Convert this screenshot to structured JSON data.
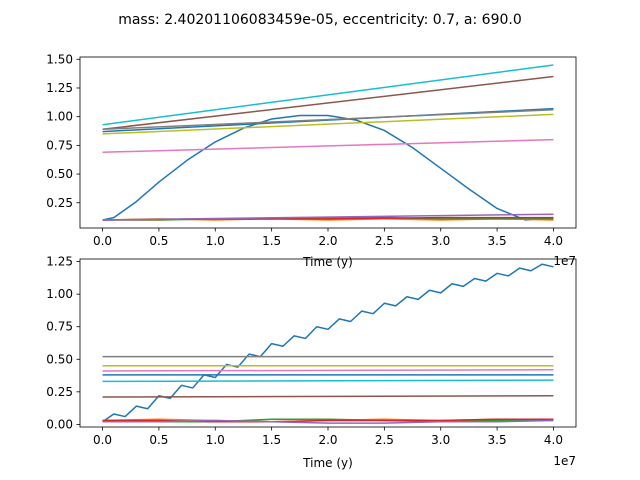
{
  "figure": {
    "suptitle": "mass: 2.40201106083459e-05, eccentricity: 0.7, a: 690.0"
  },
  "chart_data": [
    {
      "type": "line",
      "title": "",
      "xlabel": "Time (y)",
      "ylabel": "",
      "x_offset_label": "1e7",
      "xlim": [
        -0.2,
        4.2
      ],
      "ylim": [
        0.03,
        1.52
      ],
      "x_ticks": [
        0.0,
        0.5,
        1.0,
        1.5,
        2.0,
        2.5,
        3.0,
        3.5,
        4.0
      ],
      "x_tick_labels": [
        "0.0",
        "0.5",
        "1.0",
        "1.5",
        "2.0",
        "2.5",
        "3.0",
        "3.5",
        "4.0"
      ],
      "y_ticks": [
        0.25,
        0.5,
        0.75,
        1.0,
        1.25,
        1.5
      ],
      "y_tick_labels": [
        "0.25",
        "0.50",
        "0.75",
        "1.00",
        "1.25",
        "1.50"
      ],
      "series": [
        {
          "color": "#1f77b4",
          "x": [
            0.0,
            0.1,
            0.3,
            0.5,
            0.75,
            1.0,
            1.25,
            1.5,
            1.75,
            2.0,
            2.25,
            2.5,
            2.75,
            3.0,
            3.25,
            3.5,
            3.75,
            4.0
          ],
          "y": [
            0.1,
            0.12,
            0.26,
            0.43,
            0.62,
            0.78,
            0.9,
            0.98,
            1.01,
            1.01,
            0.97,
            0.88,
            0.73,
            0.55,
            0.37,
            0.2,
            0.1,
            0.12
          ]
        },
        {
          "color": "#1f77b4",
          "x": [
            0.0,
            4.0
          ],
          "y": [
            0.87,
            1.07
          ]
        },
        {
          "color": "#ff7f0e",
          "x": [
            0.0,
            0.5,
            1.0,
            1.5,
            2.0,
            2.5,
            3.0,
            3.5,
            4.0
          ],
          "y": [
            0.1,
            0.11,
            0.1,
            0.11,
            0.1,
            0.11,
            0.1,
            0.11,
            0.1
          ]
        },
        {
          "color": "#2ca02c",
          "x": [
            0.0,
            0.5,
            1.0,
            1.5,
            2.0,
            2.5,
            3.0,
            3.5,
            4.0
          ],
          "y": [
            0.1,
            0.1,
            0.11,
            0.11,
            0.12,
            0.12,
            0.11,
            0.11,
            0.11
          ]
        },
        {
          "color": "#d62728",
          "x": [
            0.0,
            1.0,
            2.0,
            3.0,
            4.0
          ],
          "y": [
            0.1,
            0.11,
            0.11,
            0.12,
            0.12
          ]
        },
        {
          "color": "#9467bd",
          "x": [
            0.0,
            4.0
          ],
          "y": [
            0.1,
            0.15
          ]
        },
        {
          "color": "#8c564b",
          "x": [
            0.0,
            4.0
          ],
          "y": [
            0.89,
            1.35
          ]
        },
        {
          "color": "#e377c2",
          "x": [
            0.0,
            4.0
          ],
          "y": [
            0.69,
            0.8
          ]
        },
        {
          "color": "#7f7f7f",
          "x": [
            0.0,
            4.0
          ],
          "y": [
            0.89,
            1.06
          ]
        },
        {
          "color": "#bcbd22",
          "x": [
            0.0,
            4.0
          ],
          "y": [
            0.85,
            1.02
          ]
        },
        {
          "color": "#17becf",
          "x": [
            0.0,
            4.0
          ],
          "y": [
            0.93,
            1.45
          ]
        }
      ]
    },
    {
      "type": "line",
      "title": "",
      "xlabel": "Time (y)",
      "ylabel": "",
      "x_offset_label": "1e7",
      "xlim": [
        -0.2,
        4.2
      ],
      "ylim": [
        -0.02,
        1.27
      ],
      "x_ticks": [
        0.0,
        0.5,
        1.0,
        1.5,
        2.0,
        2.5,
        3.0,
        3.5,
        4.0
      ],
      "x_tick_labels": [
        "0.0",
        "0.5",
        "1.0",
        "1.5",
        "2.0",
        "2.5",
        "3.0",
        "3.5",
        "4.0"
      ],
      "y_ticks": [
        0.0,
        0.25,
        0.5,
        0.75,
        1.0,
        1.25
      ],
      "y_tick_labels": [
        "0.00",
        "0.25",
        "0.50",
        "0.75",
        "1.00",
        "1.25"
      ],
      "series": [
        {
          "color": "#1f77b4",
          "x": [
            0.0,
            0.1,
            0.2,
            0.3,
            0.4,
            0.5,
            0.6,
            0.7,
            0.8,
            0.9,
            1.0,
            1.1,
            1.2,
            1.3,
            1.4,
            1.5,
            1.6,
            1.7,
            1.8,
            1.9,
            2.0,
            2.1,
            2.2,
            2.3,
            2.4,
            2.5,
            2.6,
            2.7,
            2.8,
            2.9,
            3.0,
            3.1,
            3.2,
            3.3,
            3.4,
            3.5,
            3.6,
            3.7,
            3.8,
            3.9,
            4.0
          ],
          "y": [
            0.02,
            0.08,
            0.06,
            0.14,
            0.12,
            0.22,
            0.2,
            0.3,
            0.28,
            0.38,
            0.36,
            0.46,
            0.44,
            0.54,
            0.52,
            0.62,
            0.6,
            0.68,
            0.66,
            0.75,
            0.73,
            0.81,
            0.79,
            0.87,
            0.85,
            0.93,
            0.91,
            0.98,
            0.96,
            1.03,
            1.01,
            1.08,
            1.06,
            1.12,
            1.1,
            1.16,
            1.14,
            1.2,
            1.18,
            1.23,
            1.21
          ]
        },
        {
          "color": "#ff7f0e",
          "x": [
            0.0,
            0.5,
            1.0,
            1.5,
            2.0,
            2.5,
            3.0,
            3.5,
            4.0
          ],
          "y": [
            0.03,
            0.04,
            0.03,
            0.02,
            0.03,
            0.04,
            0.03,
            0.04,
            0.04
          ]
        },
        {
          "color": "#2ca02c",
          "x": [
            0.0,
            0.5,
            1.0,
            1.5,
            2.0,
            2.5,
            3.0,
            3.5,
            4.0
          ],
          "y": [
            0.03,
            0.02,
            0.02,
            0.04,
            0.04,
            0.03,
            0.02,
            0.03,
            0.03
          ]
        },
        {
          "color": "#d62728",
          "x": [
            0.0,
            0.5,
            1.0,
            1.5,
            2.0,
            2.5,
            3.0,
            3.5,
            4.0
          ],
          "y": [
            0.03,
            0.03,
            0.02,
            0.02,
            0.03,
            0.03,
            0.03,
            0.04,
            0.04
          ]
        },
        {
          "color": "#9467bd",
          "x": [
            0.0,
            0.5,
            1.0,
            1.5,
            2.0,
            2.5,
            3.0,
            3.5,
            4.0
          ],
          "y": [
            0.02,
            0.02,
            0.03,
            0.02,
            0.01,
            0.01,
            0.02,
            0.02,
            0.03
          ]
        },
        {
          "color": "#8c564b",
          "x": [
            0.0,
            4.0
          ],
          "y": [
            0.21,
            0.22
          ]
        },
        {
          "color": "#e377c2",
          "x": [
            0.0,
            4.0
          ],
          "y": [
            0.41,
            0.42
          ]
        },
        {
          "color": "#7f7f7f",
          "x": [
            0.0,
            4.0
          ],
          "y": [
            0.52,
            0.52
          ]
        },
        {
          "color": "#bcbd22",
          "x": [
            0.0,
            4.0
          ],
          "y": [
            0.45,
            0.45
          ]
        },
        {
          "color": "#17becf",
          "x": [
            0.0,
            4.0
          ],
          "y": [
            0.33,
            0.34
          ]
        },
        {
          "color": "#1f77b4",
          "x": [
            0.0,
            4.0
          ],
          "y": [
            0.38,
            0.38
          ]
        }
      ]
    }
  ]
}
